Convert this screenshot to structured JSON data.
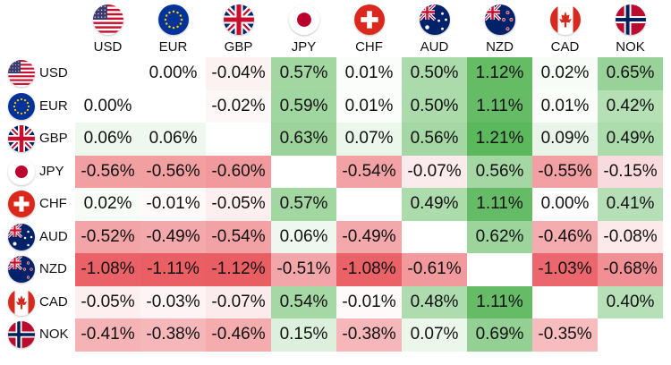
{
  "chart_data": {
    "type": "heatmap",
    "columns": [
      "USD",
      "EUR",
      "GBP",
      "JPY",
      "CHF",
      "AUD",
      "NZD",
      "CAD",
      "NOK"
    ],
    "rows": [
      "USD",
      "EUR",
      "GBP",
      "JPY",
      "CHF",
      "AUD",
      "NZD",
      "CAD",
      "NOK"
    ],
    "values": [
      [
        null,
        "0.00%",
        "-0.04%",
        "0.57%",
        "0.01%",
        "0.50%",
        "1.12%",
        "0.02%",
        "0.65%"
      ],
      [
        "0.00%",
        null,
        "-0.02%",
        "0.59%",
        "0.01%",
        "0.50%",
        "1.11%",
        "0.01%",
        "0.42%"
      ],
      [
        "0.06%",
        "0.06%",
        null,
        "0.63%",
        "0.07%",
        "0.56%",
        "1.21%",
        "0.09%",
        "0.49%"
      ],
      [
        "-0.56%",
        "-0.56%",
        "-0.60%",
        null,
        "-0.54%",
        "-0.07%",
        "0.56%",
        "-0.55%",
        "-0.15%"
      ],
      [
        "0.02%",
        "-0.01%",
        "-0.05%",
        "0.57%",
        null,
        "0.49%",
        "1.11%",
        "0.00%",
        "0.41%"
      ],
      [
        "-0.52%",
        "-0.49%",
        "-0.54%",
        "0.06%",
        "-0.49%",
        null,
        "0.62%",
        "-0.46%",
        "-0.08%"
      ],
      [
        "-1.08%",
        "-1.11%",
        "-1.12%",
        "-0.51%",
        "-1.08%",
        "-0.61%",
        null,
        "-1.03%",
        "-0.68%"
      ],
      [
        "-0.05%",
        "-0.03%",
        "-0.07%",
        "0.54%",
        "-0.01%",
        "0.48%",
        "1.11%",
        null,
        "0.40%"
      ],
      [
        "-0.41%",
        "-0.38%",
        "-0.46%",
        "0.15%",
        "-0.38%",
        "0.07%",
        "0.69%",
        "-0.35%",
        null
      ]
    ],
    "color_scale": {
      "positive": "#5cb85c",
      "negative": "#e8545a",
      "neutral": "#ffffff",
      "max_abs": 1.21
    },
    "flags": {
      "USD": "us-flag-icon",
      "EUR": "eu-flag-icon",
      "GBP": "uk-flag-icon",
      "JPY": "japan-flag-icon",
      "CHF": "swiss-flag-icon",
      "AUD": "australia-flag-icon",
      "NZD": "new-zealand-flag-icon",
      "CAD": "canada-flag-icon",
      "NOK": "norway-flag-icon"
    }
  }
}
